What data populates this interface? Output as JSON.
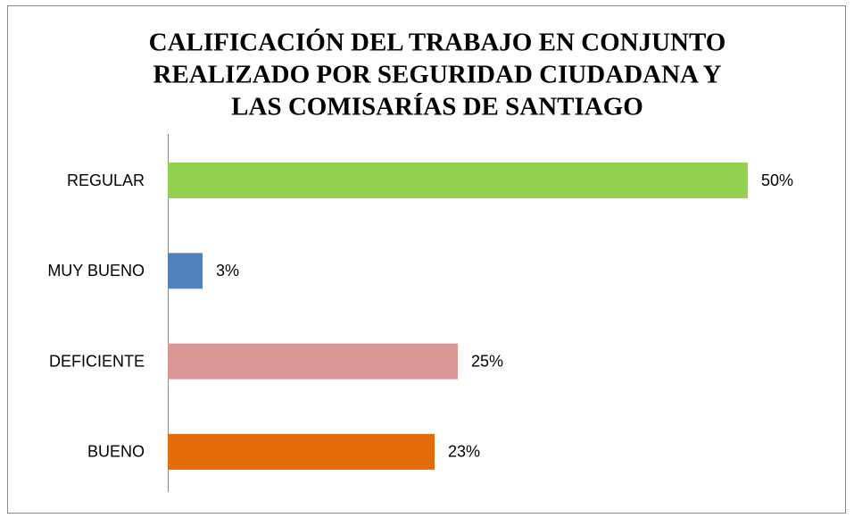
{
  "chart_data": {
    "type": "barh",
    "title": [
      "CALIFICACIÓN DEL TRABAJO EN CONJUNTO",
      "REALIZADO POR SEGURIDAD CIUDADANA Y",
      "LAS COMISARÍAS DE SANTIAGO"
    ],
    "categories": [
      "REGULAR",
      "MUY BUENO",
      "DEFICIENTE",
      "BUENO"
    ],
    "values": [
      50,
      3,
      25,
      23
    ],
    "value_labels": [
      "50%",
      "3%",
      "25%",
      "23%"
    ],
    "colors": [
      "#92d050",
      "#4f81bd",
      "#d99694",
      "#e36c09"
    ]
  }
}
